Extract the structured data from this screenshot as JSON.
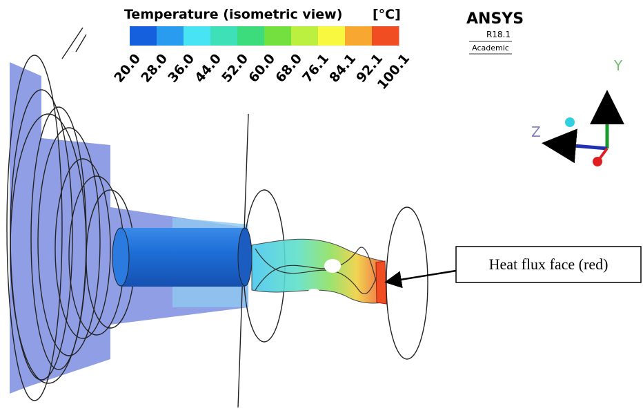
{
  "legend": {
    "title": "Temperature (isometric view)",
    "unit": "[°C]",
    "colors": [
      "#1560dc",
      "#2a9cf0",
      "#48e4f4",
      "#3ee0b8",
      "#3cdc7c",
      "#74e040",
      "#bcf040",
      "#f8f840",
      "#f8a830",
      "#f04e22"
    ],
    "ticks": [
      "20.0",
      "28.0",
      "36.0",
      "44.0",
      "52.0",
      "60.0",
      "68.0",
      "76.1",
      "84.1",
      "92.1",
      "100.1"
    ]
  },
  "logo": {
    "name": "ANSYS",
    "version": "R18.1",
    "edition": "Academic"
  },
  "triad": {
    "y": "Y",
    "z": "Z"
  },
  "annotation": "Heat flux face (red)"
}
